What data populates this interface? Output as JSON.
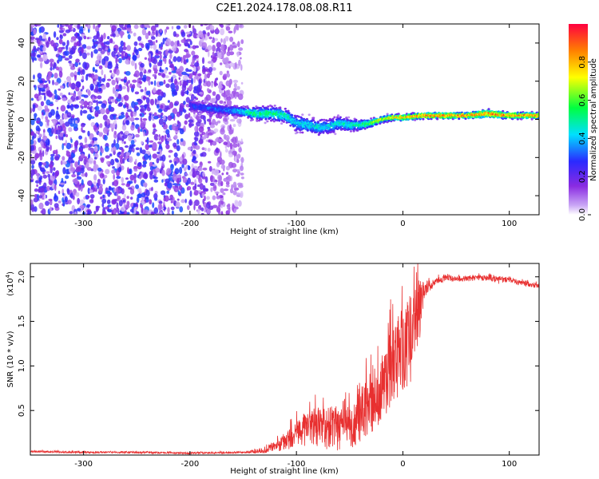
{
  "title": "C2E1.2024.178.08.08.R11",
  "colors": {
    "snr_line": "#e83030",
    "scatter_purple": "#6a2ae8",
    "colorbar_stops": [
      "#ffffff",
      "#c9a6f5",
      "#8a2be2",
      "#2a2aff",
      "#00e0ff",
      "#00ff40",
      "#ffff00",
      "#ff8000",
      "#ff0040"
    ]
  },
  "chart_data": [
    {
      "type": "heatmap",
      "name": "spectrogram",
      "xlabel": "Height of straight line (km)",
      "ylabel": "Frequency (Hz)",
      "xlim": [
        -350,
        128
      ],
      "ylim": [
        -50,
        50
      ],
      "xticks": [
        -300,
        -200,
        -100,
        0,
        100
      ],
      "xtick_labels": [
        "-300",
        "-200",
        "-100",
        "0",
        "100"
      ],
      "yticks": [
        -40,
        -20,
        0,
        20,
        40
      ],
      "ytick_labels": [
        "-40",
        "-20",
        "0",
        "20",
        "40"
      ],
      "noise_region_x": [
        -350,
        -150
      ],
      "ridge": {
        "x": [
          -200,
          -170,
          -150,
          -140,
          -120,
          -110,
          -100,
          -90,
          -80,
          -70,
          -60,
          -50,
          -40,
          -30,
          -20,
          -10,
          0,
          20,
          40,
          60,
          80,
          100,
          128
        ],
        "y": [
          7,
          5,
          4,
          3,
          3,
          2,
          -2,
          -3,
          -4,
          -4,
          -2,
          -3,
          -3,
          -2,
          0,
          1,
          1,
          2,
          2,
          2,
          3,
          2,
          2
        ],
        "width": [
          6,
          5,
          5,
          6,
          7,
          7,
          8,
          8,
          8,
          7,
          7,
          6,
          5,
          4,
          3,
          3,
          3,
          3,
          3,
          3,
          4,
          3,
          3
        ],
        "amp": [
          0.3,
          0.35,
          0.45,
          0.55,
          0.55,
          0.5,
          0.45,
          0.45,
          0.45,
          0.45,
          0.45,
          0.5,
          0.55,
          0.65,
          0.75,
          0.8,
          0.85,
          0.9,
          0.9,
          0.9,
          0.88,
          0.9,
          0.9
        ]
      },
      "colorbar": {
        "label": "Normalized spectral amplitude",
        "range": [
          0,
          1
        ],
        "ticks": [
          0.0,
          0.2,
          0.4,
          0.6,
          0.8
        ],
        "tick_labels": [
          "0.0",
          "0.2",
          "0.4",
          "0.6",
          "0.8"
        ]
      }
    },
    {
      "type": "line",
      "name": "snr",
      "xlabel": "Height of straight line (km)",
      "ylabel": "SNR (10 * v/v)",
      "scale_label": "(x10",
      "scale_exponent": "4",
      "scale_close": ")",
      "xlim": [
        -350,
        128
      ],
      "ylim": [
        0,
        2.15
      ],
      "xticks": [
        -300,
        -200,
        -100,
        0,
        100
      ],
      "xtick_labels": [
        "-300",
        "-200",
        "-100",
        "0",
        "100"
      ],
      "yticks": [
        0.5,
        1.0,
        1.5,
        2.0
      ],
      "ytick_labels": [
        "0.5",
        "1.0",
        "1.5",
        "2.0"
      ],
      "series": [
        {
          "name": "SNR",
          "x": [
            -350,
            -300,
            -250,
            -200,
            -150,
            -130,
            -120,
            -110,
            -100,
            -90,
            -80,
            -70,
            -60,
            -50,
            -40,
            -30,
            -20,
            -10,
            0,
            10,
            15,
            20,
            30,
            40,
            60,
            80,
            90,
            100,
            110,
            128
          ],
          "y": [
            0.04,
            0.03,
            0.03,
            0.02,
            0.03,
            0.05,
            0.1,
            0.15,
            0.25,
            0.3,
            0.3,
            0.3,
            0.3,
            0.3,
            0.45,
            0.6,
            0.75,
            1.0,
            1.2,
            1.35,
            1.6,
            1.85,
            1.95,
            1.98,
            1.98,
            1.99,
            1.96,
            1.97,
            1.93,
            1.9
          ],
          "spread": [
            0.01,
            0.01,
            0.01,
            0.01,
            0.01,
            0.03,
            0.06,
            0.1,
            0.15,
            0.2,
            0.22,
            0.25,
            0.25,
            0.25,
            0.3,
            0.35,
            0.4,
            0.45,
            0.5,
            0.5,
            0.4,
            0.1,
            0.04,
            0.03,
            0.03,
            0.03,
            0.04,
            0.03,
            0.03,
            0.03
          ]
        }
      ]
    }
  ]
}
